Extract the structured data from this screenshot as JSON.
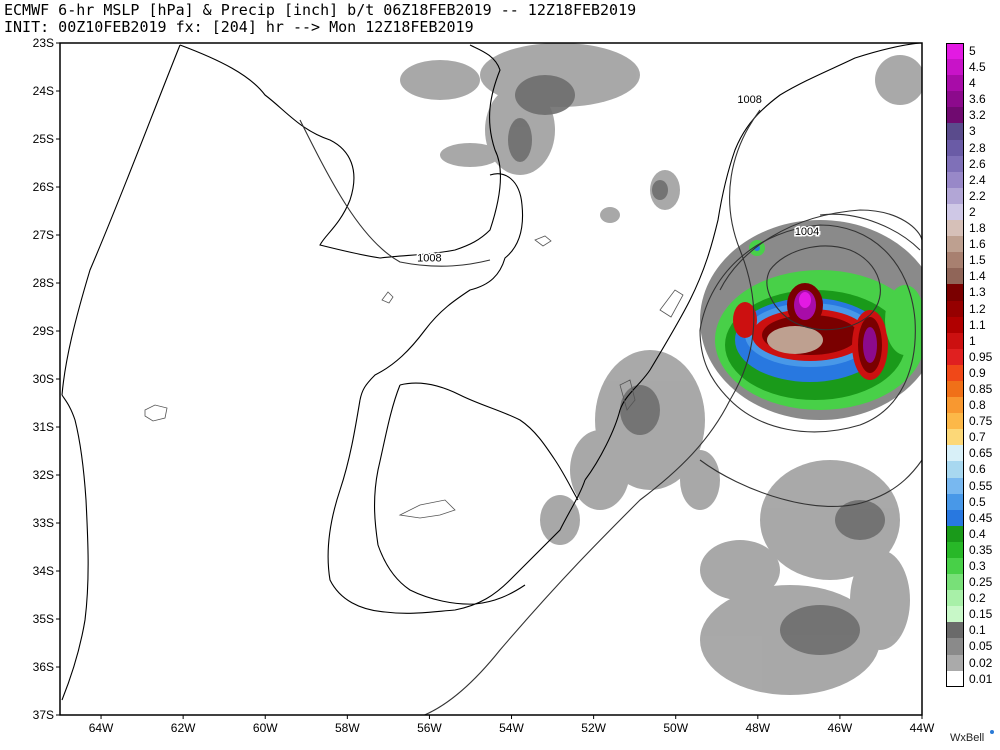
{
  "header": {
    "line1": "ECMWF 6-hr MSLP [hPa] & Precip [inch] b/t 06Z18FEB2019 -- 12Z18FEB2019",
    "line2": "INIT: 00Z10FEB2019 fx: [204] hr --> Mon 12Z18FEB2019"
  },
  "map": {
    "lat_labels": [
      "23S",
      "24S",
      "25S",
      "26S",
      "27S",
      "28S",
      "29S",
      "30S",
      "31S",
      "32S",
      "33S",
      "34S",
      "35S",
      "36S",
      "37S"
    ],
    "lon_labels": [
      "64W",
      "62W",
      "60W",
      "58W",
      "56W",
      "54W",
      "52W",
      "50W",
      "48W",
      "46W",
      "44W"
    ],
    "isobar_labels": [
      {
        "text": "1008",
        "lat": -27.55,
        "lon": -56.0
      },
      {
        "text": "1008",
        "lat": -24.25,
        "lon": -48.2
      },
      {
        "text": "1004",
        "lat": -27.0,
        "lon": -46.8
      }
    ],
    "land_color": "#ffffff",
    "border_color": "#000000",
    "isobar_color": "#333333"
  },
  "legend": {
    "labels": [
      "5",
      "4.5",
      "4",
      "3.6",
      "3.2",
      "3",
      "2.8",
      "2.6",
      "2.4",
      "2.2",
      "2",
      "1.8",
      "1.6",
      "1.5",
      "1.4",
      "1.3",
      "1.2",
      "1.1",
      "1",
      "0.95",
      "0.9",
      "0.85",
      "0.8",
      "0.75",
      "0.7",
      "0.65",
      "0.6",
      "0.55",
      "0.5",
      "0.45",
      "0.4",
      "0.35",
      "0.3",
      "0.25",
      "0.2",
      "0.15",
      "0.1",
      "0.05",
      "0.02",
      "0.01"
    ],
    "colors": [
      "#e31ae3",
      "#c813c8",
      "#a80ca8",
      "#8c0a8c",
      "#700a70",
      "#5a4b8c",
      "#6a5ba6",
      "#7f70b8",
      "#9888c8",
      "#b2a6d6",
      "#cfc8e6",
      "#d6c0b8",
      "#bea090",
      "#a88070",
      "#906558",
      "#7a0000",
      "#960000",
      "#b00000",
      "#cc1010",
      "#e02020",
      "#f04818",
      "#f07018",
      "#f89830",
      "#fcb848",
      "#fcd878",
      "#d8f0f8",
      "#a8d8f0",
      "#78b8f0",
      "#4898e8",
      "#2878e0",
      "#1a9a1a",
      "#28b828",
      "#48d048",
      "#78e078",
      "#a8f0a8",
      "#c8f8c8",
      "#6a6a6a",
      "#8a8a8a",
      "#aaaaaa",
      "#ffffff"
    ]
  },
  "brand": "WxBell"
}
